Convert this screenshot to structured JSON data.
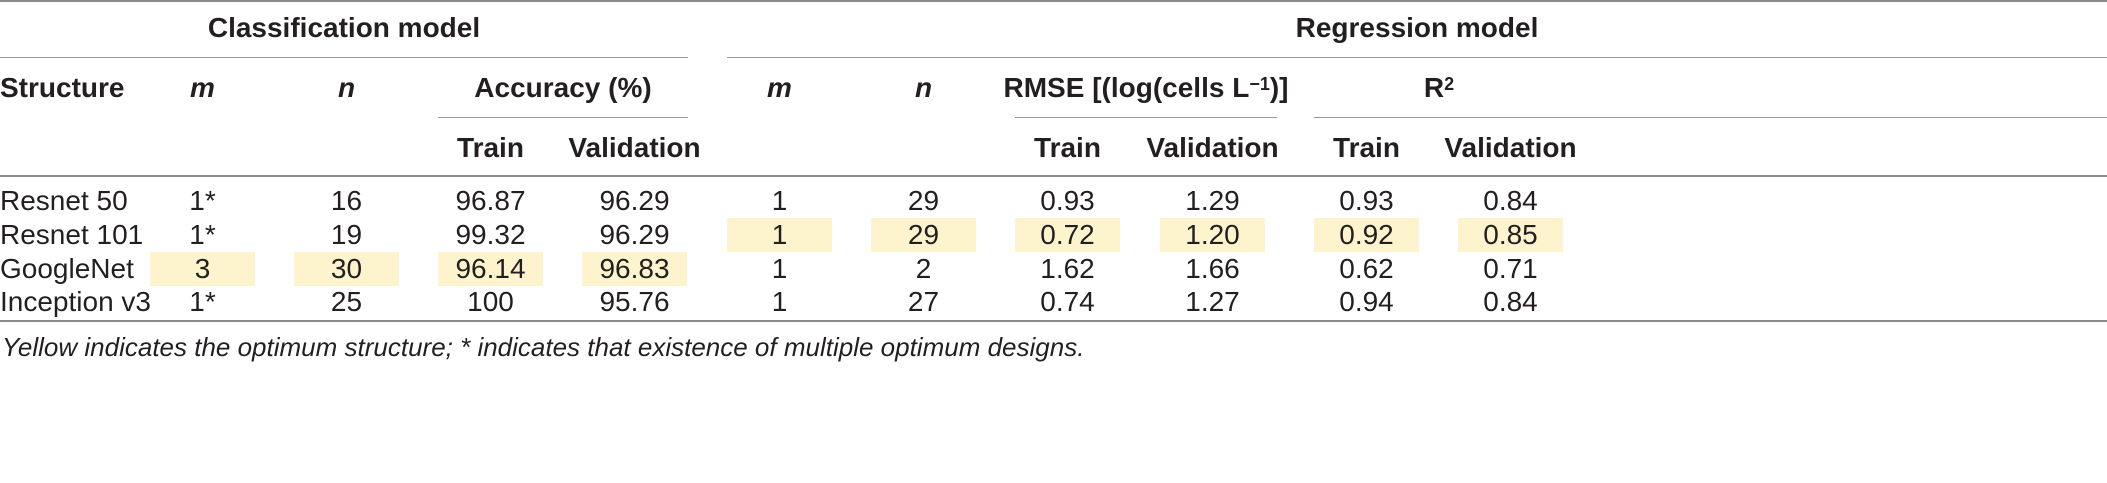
{
  "groups": {
    "classification": "Classification model",
    "regression": "Regression model"
  },
  "headers": {
    "structure": "Structure",
    "m": "m",
    "n": "n",
    "accuracy": "Accuracy (%)",
    "rmse_prefix": "RMSE [(log(cells L",
    "rmse_sup": "−1",
    "rmse_suffix": ")]",
    "r2_base": "R",
    "r2_sup": "2",
    "train": "Train",
    "validation": "Validation"
  },
  "rows": [
    {
      "structure": "Resnet 50",
      "c_m": "1*",
      "c_n": "16",
      "acc_train": "96.87",
      "acc_val": "96.29",
      "r_m": "1",
      "r_n": "29",
      "rmse_train": "0.93",
      "rmse_val": "1.29",
      "r2_train": "0.93",
      "r2_val": "0.84"
    },
    {
      "structure": "Resnet 101",
      "c_m": "1*",
      "c_n": "19",
      "acc_train": "99.32",
      "acc_val": "96.29",
      "r_m": "1",
      "r_n": "29",
      "rmse_train": "0.72",
      "rmse_val": "1.20",
      "r2_train": "0.92",
      "r2_val": "0.85"
    },
    {
      "structure": "GoogleNet",
      "c_m": "3",
      "c_n": "30",
      "acc_train": "96.14",
      "acc_val": "96.83",
      "r_m": "1",
      "r_n": "2",
      "rmse_train": "1.62",
      "rmse_val": "1.66",
      "r2_train": "0.62",
      "r2_val": "0.71"
    },
    {
      "structure": "Inception v3",
      "c_m": "1*",
      "c_n": "25",
      "acc_train": "100",
      "acc_val": "95.76",
      "r_m": "1",
      "r_n": "27",
      "rmse_train": "0.74",
      "rmse_val": "1.27",
      "r2_train": "0.94",
      "r2_val": "0.84"
    }
  ],
  "highlight_color": "#fdf3cc",
  "footnote": "Yellow indicates the optimum structure; * indicates that existence of multiple optimum designs."
}
